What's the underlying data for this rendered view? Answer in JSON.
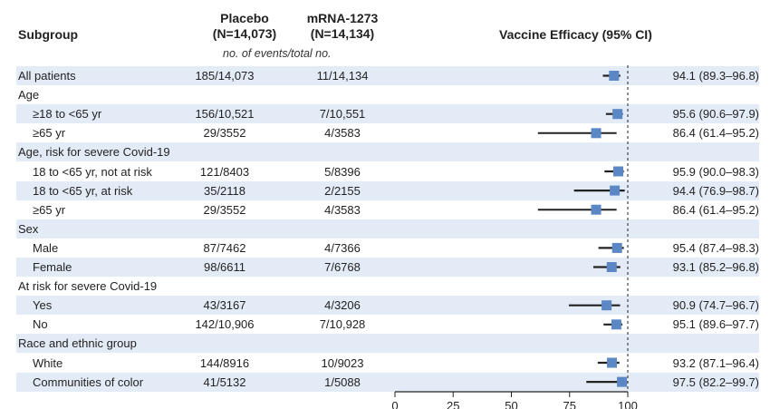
{
  "header": {
    "subgroup": "Subgroup",
    "placebo_line1": "Placebo",
    "placebo_line2": "(N=14,073)",
    "mrna_line1": "mRNA-1273",
    "mrna_line2": "(N=14,134)",
    "efficacy": "Vaccine Efficacy (95% CI)",
    "units": "no. of events/total no."
  },
  "colors": {
    "row_shade": "#e3ecf6",
    "marker": "#5b87c5",
    "line": "#222222"
  },
  "chart_data": {
    "type": "forest",
    "xlim": [
      0,
      100
    ],
    "ticks": [
      0,
      25,
      50,
      75,
      100
    ],
    "reference_line": 100,
    "rows": [
      {
        "label": "All patients",
        "indent": false,
        "header": false,
        "placebo": "185/14,073",
        "mrna": "11/14,134",
        "ve": "94.1 (89.3–96.8)",
        "est": 94.1,
        "lo": 89.3,
        "hi": 96.8
      },
      {
        "label": "Age",
        "indent": false,
        "header": true
      },
      {
        "label": "≥18 to <65 yr",
        "indent": true,
        "header": false,
        "placebo": "156/10,521",
        "mrna": "7/10,551",
        "ve": "95.6 (90.6–97.9)",
        "est": 95.6,
        "lo": 90.6,
        "hi": 97.9
      },
      {
        "label": "≥65 yr",
        "indent": true,
        "header": false,
        "placebo": "29/3552",
        "mrna": "4/3583",
        "ve": "86.4 (61.4–95.2)",
        "est": 86.4,
        "lo": 61.4,
        "hi": 95.2
      },
      {
        "label": "Age, risk for severe Covid-19",
        "indent": false,
        "header": true
      },
      {
        "label": "18 to <65 yr, not at risk",
        "indent": true,
        "header": false,
        "placebo": "121/8403",
        "mrna": "5/8396",
        "ve": "95.9 (90.0–98.3)",
        "est": 95.9,
        "lo": 90.0,
        "hi": 98.3
      },
      {
        "label": "18 to <65 yr, at risk",
        "indent": true,
        "header": false,
        "placebo": "35/2118",
        "mrna": "2/2155",
        "ve": "94.4 (76.9–98.7)",
        "est": 94.4,
        "lo": 76.9,
        "hi": 98.7
      },
      {
        "label": "≥65 yr",
        "indent": true,
        "header": false,
        "placebo": "29/3552",
        "mrna": "4/3583",
        "ve": "86.4 (61.4–95.2)",
        "est": 86.4,
        "lo": 61.4,
        "hi": 95.2
      },
      {
        "label": "Sex",
        "indent": false,
        "header": true
      },
      {
        "label": "Male",
        "indent": true,
        "header": false,
        "placebo": "87/7462",
        "mrna": "4/7366",
        "ve": "95.4 (87.4–98.3)",
        "est": 95.4,
        "lo": 87.4,
        "hi": 98.3
      },
      {
        "label": "Female",
        "indent": true,
        "header": false,
        "placebo": "98/6611",
        "mrna": "7/6768",
        "ve": "93.1 (85.2–96.8)",
        "est": 93.1,
        "lo": 85.2,
        "hi": 96.8
      },
      {
        "label": "At risk for severe Covid-19",
        "indent": false,
        "header": true
      },
      {
        "label": "Yes",
        "indent": true,
        "header": false,
        "placebo": "43/3167",
        "mrna": "4/3206",
        "ve": "90.9 (74.7–96.7)",
        "est": 90.9,
        "lo": 74.7,
        "hi": 96.7
      },
      {
        "label": "No",
        "indent": true,
        "header": false,
        "placebo": "142/10,906",
        "mrna": "7/10,928",
        "ve": "95.1 (89.6–97.7)",
        "est": 95.1,
        "lo": 89.6,
        "hi": 97.7
      },
      {
        "label": "Race and ethnic group",
        "indent": false,
        "header": true
      },
      {
        "label": "White",
        "indent": true,
        "header": false,
        "placebo": "144/8916",
        "mrna": "10/9023",
        "ve": "93.2 (87.1–96.4)",
        "est": 93.2,
        "lo": 87.1,
        "hi": 96.4
      },
      {
        "label": "Communities of color",
        "indent": true,
        "header": false,
        "placebo": "41/5132",
        "mrna": "1/5088",
        "ve": "97.5 (82.2–99.7)",
        "est": 97.5,
        "lo": 82.2,
        "hi": 99.7
      }
    ]
  }
}
